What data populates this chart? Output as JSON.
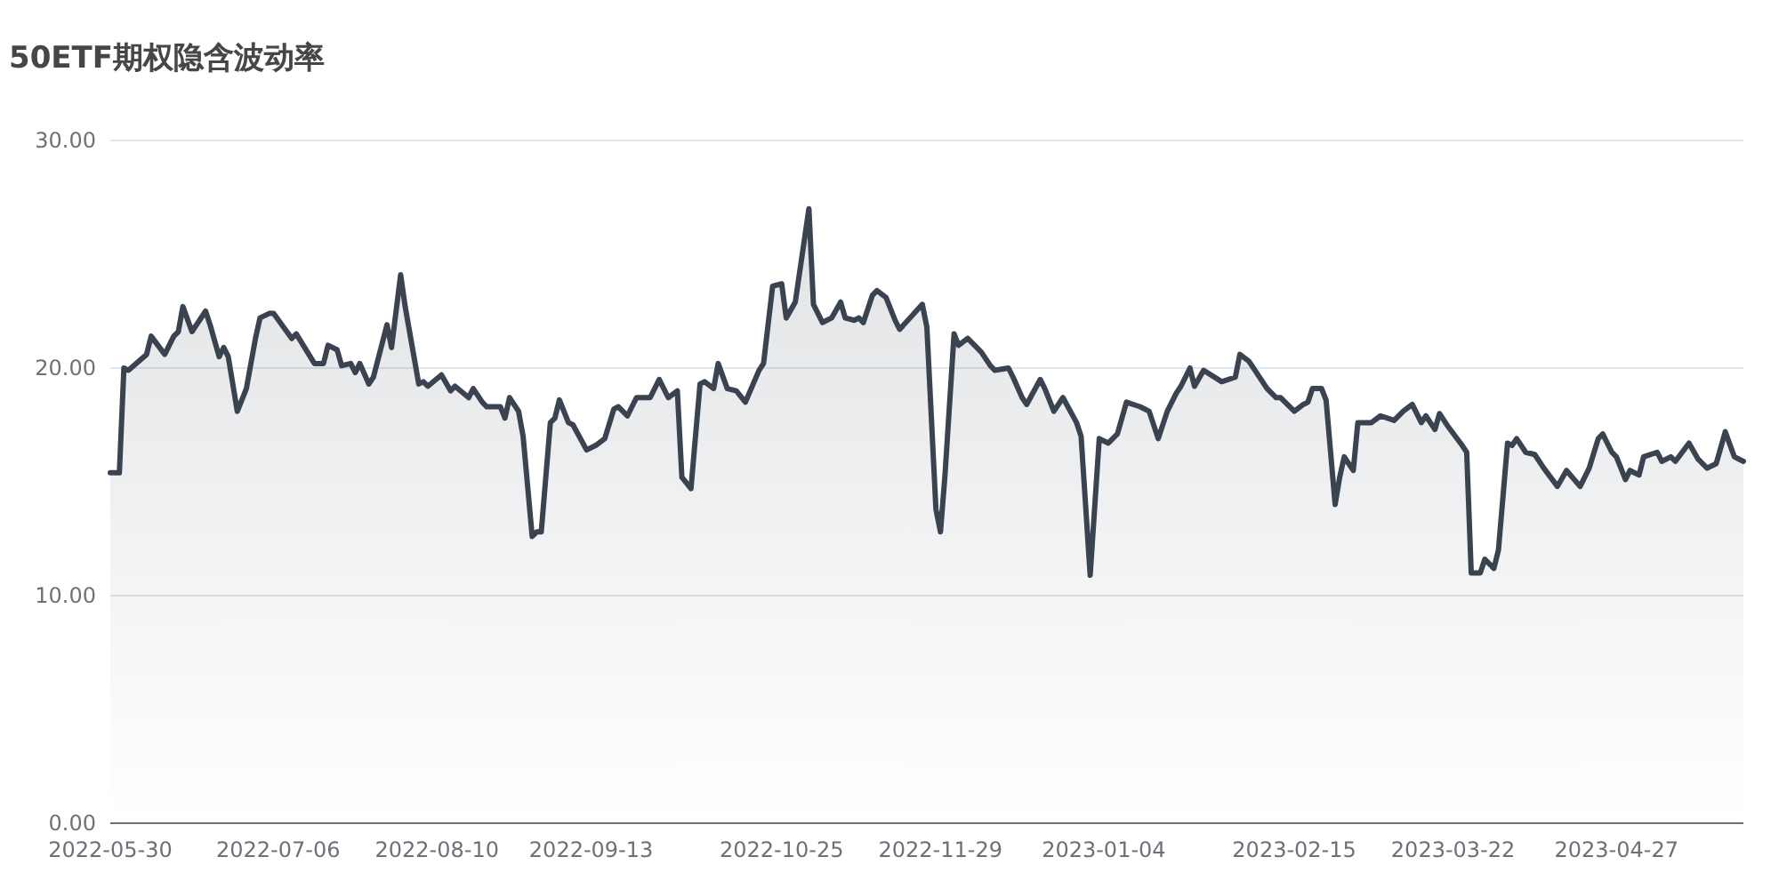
{
  "chart_data": {
    "type": "area",
    "title": "50ETF期权隐含波动率",
    "x": [
      "2022-05-30",
      "2022-06-01",
      "2022-06-02",
      "2022-06-03",
      "2022-06-07",
      "2022-06-08",
      "2022-06-11",
      "2022-06-13",
      "2022-06-14",
      "2022-06-15",
      "2022-06-17",
      "2022-06-20",
      "2022-06-21",
      "2022-06-23",
      "2022-06-24",
      "2022-06-25",
      "2022-06-27",
      "2022-06-29",
      "2022-07-01",
      "2022-07-02",
      "2022-07-04",
      "2022-07-05",
      "2022-07-09",
      "2022-07-10",
      "2022-07-14",
      "2022-07-16",
      "2022-07-17",
      "2022-07-19",
      "2022-07-20",
      "2022-07-22",
      "2022-07-23",
      "2022-07-24",
      "2022-07-26",
      "2022-07-27",
      "2022-07-30",
      "2022-07-31",
      "2022-08-02",
      "2022-08-03",
      "2022-08-06",
      "2022-08-07",
      "2022-08-08",
      "2022-08-11",
      "2022-08-13",
      "2022-08-14",
      "2022-08-17",
      "2022-08-18",
      "2022-08-20",
      "2022-08-21",
      "2022-08-24",
      "2022-08-25",
      "2022-08-26",
      "2022-08-28",
      "2022-08-29",
      "2022-08-31",
      "2022-09-01",
      "2022-09-02",
      "2022-09-04",
      "2022-09-05",
      "2022-09-06",
      "2022-09-08",
      "2022-09-09",
      "2022-09-12",
      "2022-09-14",
      "2022-09-16",
      "2022-09-18",
      "2022-09-19",
      "2022-09-21",
      "2022-09-23",
      "2022-09-26",
      "2022-09-28",
      "2022-09-30",
      "2022-10-02",
      "2022-10-03",
      "2022-10-05",
      "2022-10-07",
      "2022-10-08",
      "2022-10-10",
      "2022-10-11",
      "2022-10-13",
      "2022-10-15",
      "2022-10-17",
      "2022-10-20",
      "2022-10-21",
      "2022-10-23",
      "2022-10-25",
      "2022-10-26",
      "2022-10-28",
      "2022-10-31",
      "2022-11-01",
      "2022-11-03",
      "2022-11-05",
      "2022-11-07",
      "2022-11-08",
      "2022-11-10",
      "2022-11-11",
      "2022-11-12",
      "2022-11-14",
      "2022-11-15",
      "2022-11-17",
      "2022-11-19",
      "2022-11-20",
      "2022-11-25",
      "2022-11-26",
      "2022-11-28",
      "2022-11-29",
      "2022-11-30",
      "2022-12-02",
      "2022-12-03",
      "2022-12-05",
      "2022-12-07",
      "2022-12-08",
      "2022-12-10",
      "2022-12-11",
      "2022-12-14",
      "2022-12-15",
      "2022-12-17",
      "2022-12-18",
      "2022-12-21",
      "2022-12-22",
      "2022-12-24",
      "2022-12-26",
      "2022-12-29",
      "2022-12-30",
      "2023-01-01",
      "2023-01-03",
      "2023-01-05",
      "2023-01-07",
      "2023-01-09",
      "2023-01-12",
      "2023-01-14",
      "2023-01-16",
      "2023-01-18",
      "2023-01-20",
      "2023-01-21",
      "2023-01-23",
      "2023-01-24",
      "2023-01-26",
      "2023-01-30",
      "2023-02-02",
      "2023-02-03",
      "2023-02-05",
      "2023-02-09",
      "2023-02-11",
      "2023-02-12",
      "2023-02-15",
      "2023-02-17",
      "2023-02-18",
      "2023-02-19",
      "2023-02-21",
      "2023-02-22",
      "2023-02-24",
      "2023-02-25",
      "2023-02-26",
      "2023-02-28",
      "2023-03-01",
      "2023-03-04",
      "2023-03-06",
      "2023-03-09",
      "2023-03-11",
      "2023-03-13",
      "2023-03-15",
      "2023-03-16",
      "2023-03-18",
      "2023-03-19",
      "2023-03-21",
      "2023-03-24",
      "2023-03-25",
      "2023-03-26",
      "2023-03-28",
      "2023-03-29",
      "2023-03-31",
      "2023-04-01",
      "2023-04-03",
      "2023-04-04",
      "2023-04-05",
      "2023-04-07",
      "2023-04-09",
      "2023-04-11",
      "2023-04-14",
      "2023-04-16",
      "2023-04-19",
      "2023-04-21",
      "2023-04-23",
      "2023-04-24",
      "2023-04-26",
      "2023-04-27",
      "2023-04-29",
      "2023-04-30",
      "2023-05-02",
      "2023-05-03",
      "2023-05-06",
      "2023-05-07",
      "2023-05-09",
      "2023-05-10",
      "2023-05-13",
      "2023-05-15",
      "2023-05-17",
      "2023-05-19",
      "2023-05-21",
      "2023-05-23",
      "2023-05-25"
    ],
    "series": [
      {
        "color": "#3a4350",
        "values": [
          15.4,
          15.4,
          20.0,
          19.9,
          20.6,
          21.4,
          20.6,
          21.4,
          21.6,
          22.7,
          21.6,
          22.5,
          21.9,
          20.5,
          20.9,
          20.5,
          18.1,
          19.1,
          21.3,
          22.2,
          22.4,
          22.4,
          21.3,
          21.5,
          20.2,
          20.2,
          21.0,
          20.8,
          20.1,
          20.2,
          19.8,
          20.2,
          19.3,
          19.6,
          21.9,
          20.9,
          24.1,
          22.7,
          19.3,
          19.4,
          19.2,
          19.7,
          19.0,
          19.2,
          18.7,
          19.1,
          18.5,
          18.3,
          18.3,
          17.8,
          18.7,
          18.1,
          17.0,
          12.6,
          12.8,
          12.8,
          17.6,
          17.8,
          18.6,
          17.6,
          17.5,
          16.4,
          16.6,
          16.9,
          18.2,
          18.3,
          17.9,
          18.7,
          18.7,
          19.5,
          18.7,
          19.0,
          15.2,
          14.7,
          19.3,
          19.4,
          19.1,
          20.2,
          19.1,
          19.0,
          18.5,
          19.9,
          20.2,
          23.6,
          23.7,
          22.2,
          22.9,
          27.0,
          22.8,
          22.0,
          22.2,
          22.9,
          22.2,
          22.1,
          22.2,
          22.0,
          23.2,
          23.4,
          23.1,
          22.1,
          21.7,
          22.8,
          21.8,
          13.8,
          12.8,
          15.3,
          21.5,
          21.0,
          21.3,
          20.9,
          20.7,
          20.1,
          19.9,
          20.0,
          19.6,
          18.7,
          18.4,
          19.5,
          19.1,
          18.1,
          18.7,
          17.6,
          17.0,
          10.9,
          16.9,
          16.7,
          17.1,
          18.5,
          18.3,
          18.1,
          16.9,
          18.1,
          18.9,
          19.2,
          20.0,
          19.2,
          19.9,
          19.4,
          19.6,
          20.6,
          20.3,
          19.1,
          18.7,
          18.7,
          18.1,
          18.4,
          18.5,
          19.1,
          19.1,
          18.6,
          14.0,
          15.2,
          16.1,
          15.5,
          17.6,
          17.6,
          17.9,
          17.7,
          18.1,
          18.4,
          17.6,
          17.9,
          17.3,
          18.0,
          17.4,
          16.6,
          16.3,
          11.0,
          11.0,
          11.6,
          11.2,
          12.0,
          16.7,
          16.6,
          16.9,
          16.3,
          16.2,
          15.6,
          14.8,
          15.5,
          14.8,
          15.6,
          16.9,
          17.1,
          16.3,
          16.1,
          15.1,
          15.5,
          15.3,
          16.1,
          16.3,
          15.9,
          16.1,
          15.9,
          16.7,
          16.0,
          15.6,
          15.8,
          17.2,
          16.1,
          15.9
        ]
      }
    ],
    "xlim": [
      "2022-05-30",
      "2023-05-25"
    ],
    "xticks": [
      "2022-05-30",
      "2022-07-06",
      "2022-08-10",
      "2022-09-13",
      "2022-10-25",
      "2022-11-29",
      "2023-01-04",
      "2023-02-15",
      "2023-03-22",
      "2023-04-27"
    ],
    "ylim": [
      0,
      30
    ],
    "yticks": [
      {
        "value": 0,
        "label": "0.00"
      },
      {
        "value": 10,
        "label": "10.00"
      },
      {
        "value": 20,
        "label": "20.00"
      },
      {
        "value": 30,
        "label": "30.00"
      }
    ],
    "grid": "y"
  }
}
